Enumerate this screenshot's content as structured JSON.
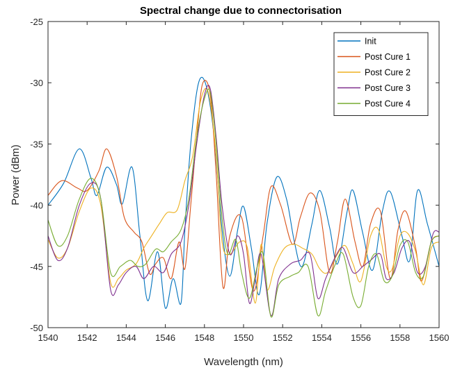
{
  "chart_data": {
    "type": "line",
    "title": "Spectral change due to connectorisation",
    "xlabel": "Wavelength (nm)",
    "ylabel": "Power (dBm)",
    "xlim": [
      1540,
      1560
    ],
    "ylim": [
      -50,
      -25
    ],
    "xticks": [
      1540,
      1542,
      1544,
      1546,
      1548,
      1550,
      1552,
      1554,
      1556,
      1558,
      1560
    ],
    "yticks": [
      -50,
      -45,
      -40,
      -35,
      -30,
      -25
    ],
    "legend_position": "top-right",
    "grid": false,
    "series": [
      {
        "name": "Init",
        "color": "#0072BD",
        "points": [
          [
            1540,
            -40.0
          ],
          [
            1540.8,
            -38.2
          ],
          [
            1541.6,
            -35.4
          ],
          [
            1542.2,
            -37.8
          ],
          [
            1542.5,
            -39.2
          ],
          [
            1543.0,
            -36.9
          ],
          [
            1543.5,
            -38.3
          ],
          [
            1543.8,
            -39.9
          ],
          [
            1544.3,
            -36.9
          ],
          [
            1544.7,
            -42.5
          ],
          [
            1545.1,
            -47.8
          ],
          [
            1545.6,
            -43.8
          ],
          [
            1546.0,
            -48.4
          ],
          [
            1546.4,
            -46.0
          ],
          [
            1546.8,
            -48.0
          ],
          [
            1547.0,
            -42.0
          ],
          [
            1547.3,
            -35.0
          ],
          [
            1547.7,
            -30.0
          ],
          [
            1548.1,
            -30.3
          ],
          [
            1548.5,
            -34.5
          ],
          [
            1548.9,
            -42.0
          ],
          [
            1549.3,
            -45.8
          ],
          [
            1549.7,
            -42.0
          ],
          [
            1550.0,
            -40.1
          ],
          [
            1550.4,
            -43.5
          ],
          [
            1550.8,
            -47.3
          ],
          [
            1551.2,
            -41.5
          ],
          [
            1551.7,
            -37.7
          ],
          [
            1552.2,
            -39.5
          ],
          [
            1552.6,
            -43.0
          ],
          [
            1553.0,
            -45.0
          ],
          [
            1553.5,
            -41.5
          ],
          [
            1553.9,
            -38.8
          ],
          [
            1554.4,
            -41.8
          ],
          [
            1554.8,
            -44.8
          ],
          [
            1555.3,
            -40.5
          ],
          [
            1555.6,
            -38.8
          ],
          [
            1556.1,
            -42.3
          ],
          [
            1556.6,
            -45.3
          ],
          [
            1557.1,
            -40.5
          ],
          [
            1557.5,
            -38.9
          ],
          [
            1558.1,
            -42.5
          ],
          [
            1558.5,
            -44.5
          ],
          [
            1558.9,
            -38.8
          ],
          [
            1559.4,
            -41.5
          ],
          [
            1560,
            -45.0
          ]
        ]
      },
      {
        "name": "Post Cure 1",
        "color": "#D95319",
        "points": [
          [
            1540,
            -39.2
          ],
          [
            1540.7,
            -38.0
          ],
          [
            1541.5,
            -38.6
          ],
          [
            1542.0,
            -38.8
          ],
          [
            1542.6,
            -37.2
          ],
          [
            1543.0,
            -35.4
          ],
          [
            1543.5,
            -37.6
          ],
          [
            1543.9,
            -41.0
          ],
          [
            1544.4,
            -42.2
          ],
          [
            1544.8,
            -43.0
          ],
          [
            1545.2,
            -45.6
          ],
          [
            1545.5,
            -44.8
          ],
          [
            1545.9,
            -44.3
          ],
          [
            1546.3,
            -46.0
          ],
          [
            1546.7,
            -43.0
          ],
          [
            1547.0,
            -45.2
          ],
          [
            1547.3,
            -40.0
          ],
          [
            1547.6,
            -34.5
          ],
          [
            1547.9,
            -30.1
          ],
          [
            1548.3,
            -31.0
          ],
          [
            1548.6,
            -37.5
          ],
          [
            1548.95,
            -46.7
          ],
          [
            1549.3,
            -42.5
          ],
          [
            1549.9,
            -41.0
          ],
          [
            1550.5,
            -47.0
          ],
          [
            1551.0,
            -42.5
          ],
          [
            1551.4,
            -38.5
          ],
          [
            1551.9,
            -40.0
          ],
          [
            1552.5,
            -43.2
          ],
          [
            1552.9,
            -41.0
          ],
          [
            1553.4,
            -39.0
          ],
          [
            1553.9,
            -40.5
          ],
          [
            1554.4,
            -45.5
          ],
          [
            1554.8,
            -43.0
          ],
          [
            1555.2,
            -39.5
          ],
          [
            1555.7,
            -43.0
          ],
          [
            1556.1,
            -45.0
          ],
          [
            1556.5,
            -41.5
          ],
          [
            1557.0,
            -40.5
          ],
          [
            1557.5,
            -46.0
          ],
          [
            1557.9,
            -42.0
          ],
          [
            1558.3,
            -40.5
          ],
          [
            1558.8,
            -43.5
          ],
          [
            1559.1,
            -46.2
          ],
          [
            1559.6,
            -43.0
          ],
          [
            1560,
            -42.5
          ]
        ]
      },
      {
        "name": "Post Cure 2",
        "color": "#EDB120",
        "points": [
          [
            1540,
            -42.8
          ],
          [
            1540.5,
            -44.3
          ],
          [
            1541.0,
            -43.5
          ],
          [
            1541.6,
            -40.5
          ],
          [
            1542.2,
            -38.6
          ],
          [
            1542.7,
            -40.0
          ],
          [
            1543.2,
            -46.3
          ],
          [
            1543.6,
            -46.0
          ],
          [
            1544.0,
            -45.3
          ],
          [
            1544.5,
            -44.8
          ],
          [
            1544.9,
            -43.5
          ],
          [
            1545.3,
            -42.5
          ],
          [
            1545.7,
            -41.5
          ],
          [
            1546.1,
            -40.6
          ],
          [
            1546.6,
            -40.4
          ],
          [
            1547.0,
            -38.0
          ],
          [
            1547.4,
            -36.0
          ],
          [
            1547.8,
            -31.5
          ],
          [
            1548.2,
            -30.8
          ],
          [
            1548.6,
            -36.0
          ],
          [
            1548.9,
            -43.0
          ],
          [
            1549.3,
            -44.0
          ],
          [
            1549.8,
            -43.0
          ],
          [
            1550.2,
            -43.5
          ],
          [
            1550.6,
            -48.0
          ],
          [
            1550.9,
            -43.2
          ],
          [
            1551.2,
            -46.9
          ],
          [
            1551.6,
            -45.0
          ],
          [
            1552.1,
            -43.5
          ],
          [
            1552.6,
            -43.2
          ],
          [
            1553.0,
            -43.5
          ],
          [
            1553.5,
            -44.0
          ],
          [
            1553.9,
            -45.2
          ],
          [
            1554.3,
            -45.5
          ],
          [
            1554.8,
            -44.0
          ],
          [
            1555.2,
            -43.3
          ],
          [
            1555.6,
            -44.8
          ],
          [
            1556.0,
            -46.2
          ],
          [
            1556.5,
            -42.5
          ],
          [
            1556.9,
            -42.0
          ],
          [
            1557.3,
            -45.0
          ],
          [
            1557.6,
            -45.2
          ],
          [
            1558.0,
            -42.5
          ],
          [
            1558.4,
            -42.3
          ],
          [
            1558.8,
            -43.8
          ],
          [
            1559.2,
            -46.5
          ],
          [
            1559.6,
            -43.5
          ],
          [
            1560,
            -43.0
          ]
        ]
      },
      {
        "name": "Post Cure 3",
        "color": "#7E2F8E",
        "points": [
          [
            1540,
            -42.5
          ],
          [
            1540.5,
            -44.5
          ],
          [
            1541.0,
            -43.5
          ],
          [
            1541.6,
            -40.0
          ],
          [
            1542.2,
            -38.2
          ],
          [
            1542.7,
            -39.5
          ],
          [
            1543.2,
            -46.9
          ],
          [
            1543.6,
            -46.5
          ],
          [
            1544.0,
            -45.5
          ],
          [
            1544.5,
            -45.0
          ],
          [
            1544.9,
            -46.0
          ],
          [
            1545.4,
            -45.0
          ],
          [
            1545.9,
            -45.5
          ],
          [
            1546.3,
            -44.0
          ],
          [
            1546.8,
            -43.0
          ],
          [
            1547.2,
            -40.0
          ],
          [
            1547.6,
            -35.0
          ],
          [
            1548.0,
            -31.0
          ],
          [
            1548.3,
            -30.5
          ],
          [
            1548.6,
            -34.5
          ],
          [
            1548.9,
            -40.0
          ],
          [
            1549.3,
            -44.0
          ],
          [
            1549.7,
            -42.5
          ],
          [
            1550.0,
            -44.0
          ],
          [
            1550.3,
            -48.0
          ],
          [
            1550.6,
            -46.0
          ],
          [
            1550.9,
            -44.0
          ],
          [
            1551.4,
            -49.0
          ],
          [
            1551.8,
            -46.0
          ],
          [
            1552.4,
            -44.8
          ],
          [
            1552.9,
            -44.5
          ],
          [
            1553.4,
            -44.0
          ],
          [
            1553.8,
            -47.6
          ],
          [
            1554.2,
            -46.0
          ],
          [
            1554.7,
            -44.2
          ],
          [
            1555.1,
            -43.5
          ],
          [
            1555.6,
            -45.5
          ],
          [
            1556.1,
            -45.0
          ],
          [
            1556.5,
            -44.5
          ],
          [
            1557.0,
            -44.0
          ],
          [
            1557.3,
            -46.0
          ],
          [
            1557.7,
            -45.5
          ],
          [
            1558.1,
            -43.5
          ],
          [
            1558.5,
            -43.0
          ],
          [
            1558.9,
            -45.5
          ],
          [
            1559.3,
            -45.0
          ],
          [
            1559.7,
            -42.3
          ],
          [
            1560,
            -42.2
          ]
        ]
      },
      {
        "name": "Post Cure 4",
        "color": "#77AC30",
        "points": [
          [
            1540,
            -41.2
          ],
          [
            1540.5,
            -43.3
          ],
          [
            1541.0,
            -42.5
          ],
          [
            1541.6,
            -39.5
          ],
          [
            1542.2,
            -37.8
          ],
          [
            1542.7,
            -39.5
          ],
          [
            1543.2,
            -45.5
          ],
          [
            1543.7,
            -45.0
          ],
          [
            1544.2,
            -44.5
          ],
          [
            1544.6,
            -45.0
          ],
          [
            1545.0,
            -44.8
          ],
          [
            1545.5,
            -43.6
          ],
          [
            1545.9,
            -43.8
          ],
          [
            1546.3,
            -43.0
          ],
          [
            1546.8,
            -42.0
          ],
          [
            1547.2,
            -39.5
          ],
          [
            1547.6,
            -34.5
          ],
          [
            1548.0,
            -31.3
          ],
          [
            1548.3,
            -30.8
          ],
          [
            1548.6,
            -35.0
          ],
          [
            1548.9,
            -41.0
          ],
          [
            1549.2,
            -44.0
          ],
          [
            1549.6,
            -42.8
          ],
          [
            1549.9,
            -45.5
          ],
          [
            1550.3,
            -47.6
          ],
          [
            1550.7,
            -45.0
          ],
          [
            1551.0,
            -44.0
          ],
          [
            1551.4,
            -49.1
          ],
          [
            1551.8,
            -46.5
          ],
          [
            1552.4,
            -45.8
          ],
          [
            1552.8,
            -45.5
          ],
          [
            1553.3,
            -45.0
          ],
          [
            1553.8,
            -49.0
          ],
          [
            1554.2,
            -47.0
          ],
          [
            1554.7,
            -44.8
          ],
          [
            1555.1,
            -44.0
          ],
          [
            1555.6,
            -47.5
          ],
          [
            1556.0,
            -48.2
          ],
          [
            1556.4,
            -45.0
          ],
          [
            1556.8,
            -44.0
          ],
          [
            1557.2,
            -46.2
          ],
          [
            1557.6,
            -45.8
          ],
          [
            1558.0,
            -43.3
          ],
          [
            1558.4,
            -43.0
          ],
          [
            1558.8,
            -45.5
          ],
          [
            1559.2,
            -45.8
          ],
          [
            1559.6,
            -43.0
          ],
          [
            1560,
            -42.5
          ]
        ]
      }
    ]
  }
}
